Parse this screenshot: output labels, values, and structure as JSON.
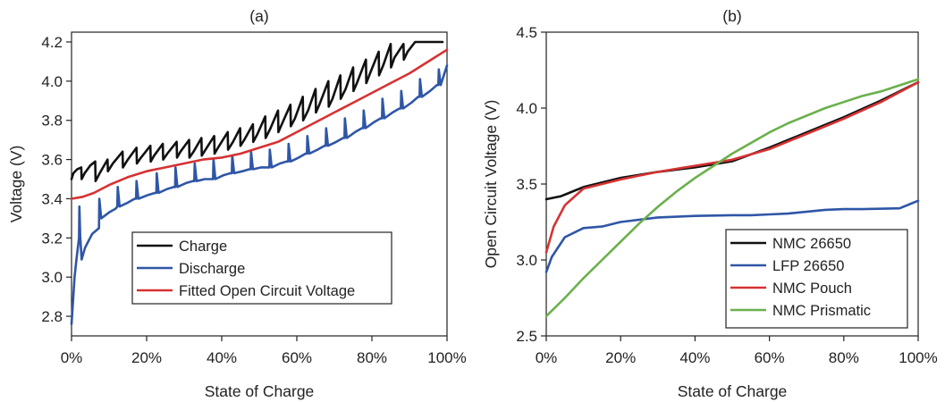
{
  "chart_data": [
    {
      "type": "line",
      "title": "(a)",
      "xlabel": "State of Charge",
      "ylabel": "Voltage (V)",
      "xlim": [
        0,
        100
      ],
      "ylim": [
        2.7,
        4.25
      ],
      "xticks": [
        "0%",
        "20%",
        "40%",
        "60%",
        "80%",
        "100%"
      ],
      "xtick_values": [
        0,
        20,
        40,
        60,
        80,
        100
      ],
      "yticks": [
        "2.8",
        "3.0",
        "3.2",
        "3.4",
        "3.6",
        "3.8",
        "4.0",
        "4.2"
      ],
      "ytick_values": [
        2.8,
        3.0,
        3.2,
        3.4,
        3.6,
        3.8,
        4.0,
        4.2
      ],
      "legend_position": "bottom-right",
      "series": [
        {
          "name": "Charge",
          "color": "#111111",
          "x": [
            0,
            0.5,
            1.5,
            2.6,
            2.7,
            3.5,
            5,
            6.3,
            6.4,
            7.5,
            9.6,
            9.7,
            11,
            13.6,
            13.7,
            15,
            17.3,
            17.4,
            18.5,
            21,
            21.1,
            22,
            24.3,
            24.4,
            25.5,
            28,
            28.1,
            29,
            31.3,
            31.4,
            32.5,
            34.6,
            34.7,
            36,
            38,
            38.1,
            39,
            41.6,
            41.7,
            43,
            44.9,
            45,
            46,
            48.3,
            48.4,
            49.5,
            51.6,
            51.7,
            53,
            55,
            55.1,
            56,
            58.3,
            58.4,
            59.5,
            61.6,
            61.7,
            63,
            65,
            65.1,
            66,
            68.4,
            68.5,
            69.5,
            71.6,
            71.7,
            73,
            75,
            75.1,
            76,
            78.4,
            78.5,
            79.5,
            81.8,
            81.9,
            83,
            85,
            85.1,
            86,
            88.4,
            88.5,
            89.5,
            91.5,
            93.5,
            96.8,
            98.8
          ],
          "values": [
            3.5,
            3.53,
            3.55,
            3.56,
            3.5,
            3.53,
            3.57,
            3.59,
            3.49,
            3.53,
            3.6,
            3.54,
            3.58,
            3.64,
            3.56,
            3.6,
            3.66,
            3.58,
            3.61,
            3.67,
            3.59,
            3.62,
            3.68,
            3.6,
            3.63,
            3.69,
            3.61,
            3.64,
            3.7,
            3.61,
            3.64,
            3.71,
            3.62,
            3.66,
            3.72,
            3.63,
            3.66,
            3.74,
            3.65,
            3.69,
            3.76,
            3.67,
            3.7,
            3.78,
            3.69,
            3.73,
            3.82,
            3.71,
            3.76,
            3.85,
            3.74,
            3.78,
            3.88,
            3.77,
            3.81,
            3.92,
            3.8,
            3.85,
            3.96,
            3.84,
            3.88,
            4.0,
            3.87,
            3.91,
            4.03,
            3.91,
            3.96,
            4.07,
            3.95,
            3.99,
            4.11,
            3.99,
            4.04,
            4.15,
            4.03,
            4.08,
            4.19,
            4.07,
            4.12,
            4.19,
            4.11,
            4.15,
            4.2,
            4.2,
            4.2,
            4.2
          ]
        },
        {
          "name": "Discharge",
          "color": "#2f56a6",
          "x": [
            0,
            0.3,
            0.8,
            1.3,
            2,
            2.1,
            2.3,
            2.7,
            3.6,
            5.5,
            7.3,
            7.4,
            7.9,
            10,
            11.8,
            12.2,
            12.3,
            12.8,
            15,
            16.8,
            17.2,
            17.3,
            17.8,
            20.5,
            22.3,
            22.6,
            22.7,
            23.2,
            25.5,
            27.3,
            27.6,
            27.7,
            28.2,
            30.5,
            32.3,
            32.7,
            32.8,
            33.3,
            35.5,
            37.3,
            37.7,
            37.8,
            38.3,
            40.5,
            42.3,
            42.7,
            42.8,
            43.3,
            45.5,
            47.3,
            47.7,
            47.8,
            48.3,
            50.5,
            52.3,
            52.7,
            52.8,
            53.3,
            55.5,
            57.3,
            57.7,
            57.8,
            58.3,
            60.5,
            62.3,
            62.7,
            62.8,
            63.3,
            65.5,
            67.3,
            67.7,
            67.8,
            68.3,
            70.5,
            72.3,
            72.7,
            72.8,
            73.3,
            75.5,
            77.3,
            77.7,
            77.8,
            78.3,
            80.5,
            82.3,
            82.7,
            82.8,
            83.3,
            85.5,
            87.3,
            87.7,
            87.8,
            88.3,
            90.5,
            92.3,
            92.7,
            92.8,
            93.3,
            95.5,
            97.3,
            97.7,
            97.8,
            98.3,
            100
          ],
          "values": [
            2.76,
            2.85,
            3.0,
            3.09,
            3.2,
            3.36,
            3.21,
            3.09,
            3.15,
            3.22,
            3.25,
            3.4,
            3.3,
            3.33,
            3.35,
            3.36,
            3.46,
            3.36,
            3.38,
            3.4,
            3.4,
            3.49,
            3.4,
            3.42,
            3.43,
            3.43,
            3.53,
            3.43,
            3.45,
            3.46,
            3.46,
            3.56,
            3.46,
            3.48,
            3.49,
            3.49,
            3.58,
            3.49,
            3.5,
            3.5,
            3.5,
            3.6,
            3.5,
            3.52,
            3.53,
            3.53,
            3.62,
            3.53,
            3.54,
            3.55,
            3.55,
            3.64,
            3.55,
            3.56,
            3.56,
            3.56,
            3.65,
            3.56,
            3.58,
            3.59,
            3.59,
            3.68,
            3.59,
            3.61,
            3.63,
            3.63,
            3.72,
            3.63,
            3.65,
            3.67,
            3.67,
            3.76,
            3.67,
            3.69,
            3.71,
            3.71,
            3.81,
            3.71,
            3.74,
            3.76,
            3.76,
            3.85,
            3.76,
            3.79,
            3.81,
            3.81,
            3.91,
            3.81,
            3.84,
            3.86,
            3.86,
            3.95,
            3.86,
            3.89,
            3.92,
            3.92,
            4.01,
            3.92,
            3.95,
            3.98,
            3.98,
            4.06,
            3.98,
            4.08
          ]
        },
        {
          "name": "Fitted Open Circuit Voltage",
          "color": "#d63232",
          "x": [
            0,
            3,
            6,
            10,
            15,
            20,
            25,
            30,
            35,
            40,
            45,
            50,
            55,
            60,
            65,
            70,
            75,
            80,
            85,
            90,
            95,
            100
          ],
          "values": [
            3.4,
            3.41,
            3.43,
            3.47,
            3.51,
            3.54,
            3.56,
            3.58,
            3.6,
            3.61,
            3.63,
            3.66,
            3.69,
            3.74,
            3.79,
            3.84,
            3.89,
            3.94,
            3.99,
            4.04,
            4.1,
            4.16
          ]
        }
      ]
    },
    {
      "type": "line",
      "title": "(b)",
      "xlabel": "State of Charge",
      "ylabel": "Open Circuit Voltage (V)",
      "xlim": [
        0,
        100
      ],
      "ylim": [
        2.5,
        4.5
      ],
      "xticks": [
        "0%",
        "20%",
        "40%",
        "60%",
        "80%",
        "100%"
      ],
      "xtick_values": [
        0,
        20,
        40,
        60,
        80,
        100
      ],
      "yticks": [
        "2.5",
        "3.0",
        "3.5",
        "4.0",
        "4.5"
      ],
      "ytick_values": [
        2.5,
        3.0,
        3.5,
        4.0,
        4.5
      ],
      "legend_position": "bottom-right",
      "series": [
        {
          "name": "NMC 26650",
          "color": "#111111",
          "x": [
            0,
            4,
            10,
            20,
            30,
            40,
            50,
            60,
            70,
            80,
            90,
            100
          ],
          "values": [
            3.4,
            3.42,
            3.48,
            3.54,
            3.58,
            3.61,
            3.65,
            3.74,
            3.84,
            3.94,
            4.05,
            4.17
          ]
        },
        {
          "name": "LFP 26650",
          "color": "#2f56a6",
          "x": [
            0,
            1.5,
            5,
            10,
            15,
            20,
            30,
            40,
            50,
            55,
            60,
            65,
            75,
            80,
            85,
            95,
            100
          ],
          "values": [
            2.92,
            3.02,
            3.15,
            3.21,
            3.22,
            3.25,
            3.28,
            3.29,
            3.295,
            3.295,
            3.3,
            3.305,
            3.33,
            3.335,
            3.335,
            3.34,
            3.39
          ]
        },
        {
          "name": "NMC Pouch",
          "color": "#d63232",
          "x": [
            0,
            2,
            5,
            10,
            15,
            20,
            30,
            40,
            50,
            60,
            70,
            80,
            90,
            100
          ],
          "values": [
            3.05,
            3.22,
            3.36,
            3.47,
            3.5,
            3.53,
            3.58,
            3.62,
            3.66,
            3.73,
            3.83,
            3.93,
            4.04,
            4.17
          ]
        },
        {
          "name": "NMC Prismatic",
          "color": "#6ab04c",
          "x": [
            0,
            5,
            10,
            15,
            20,
            25,
            30,
            35,
            40,
            45,
            50,
            55,
            60,
            65,
            70,
            75,
            80,
            85,
            90,
            95,
            100
          ],
          "values": [
            2.63,
            2.75,
            2.88,
            3.0,
            3.12,
            3.24,
            3.35,
            3.45,
            3.54,
            3.62,
            3.7,
            3.77,
            3.84,
            3.9,
            3.95,
            4.0,
            4.04,
            4.08,
            4.11,
            4.15,
            4.19
          ]
        }
      ]
    }
  ]
}
